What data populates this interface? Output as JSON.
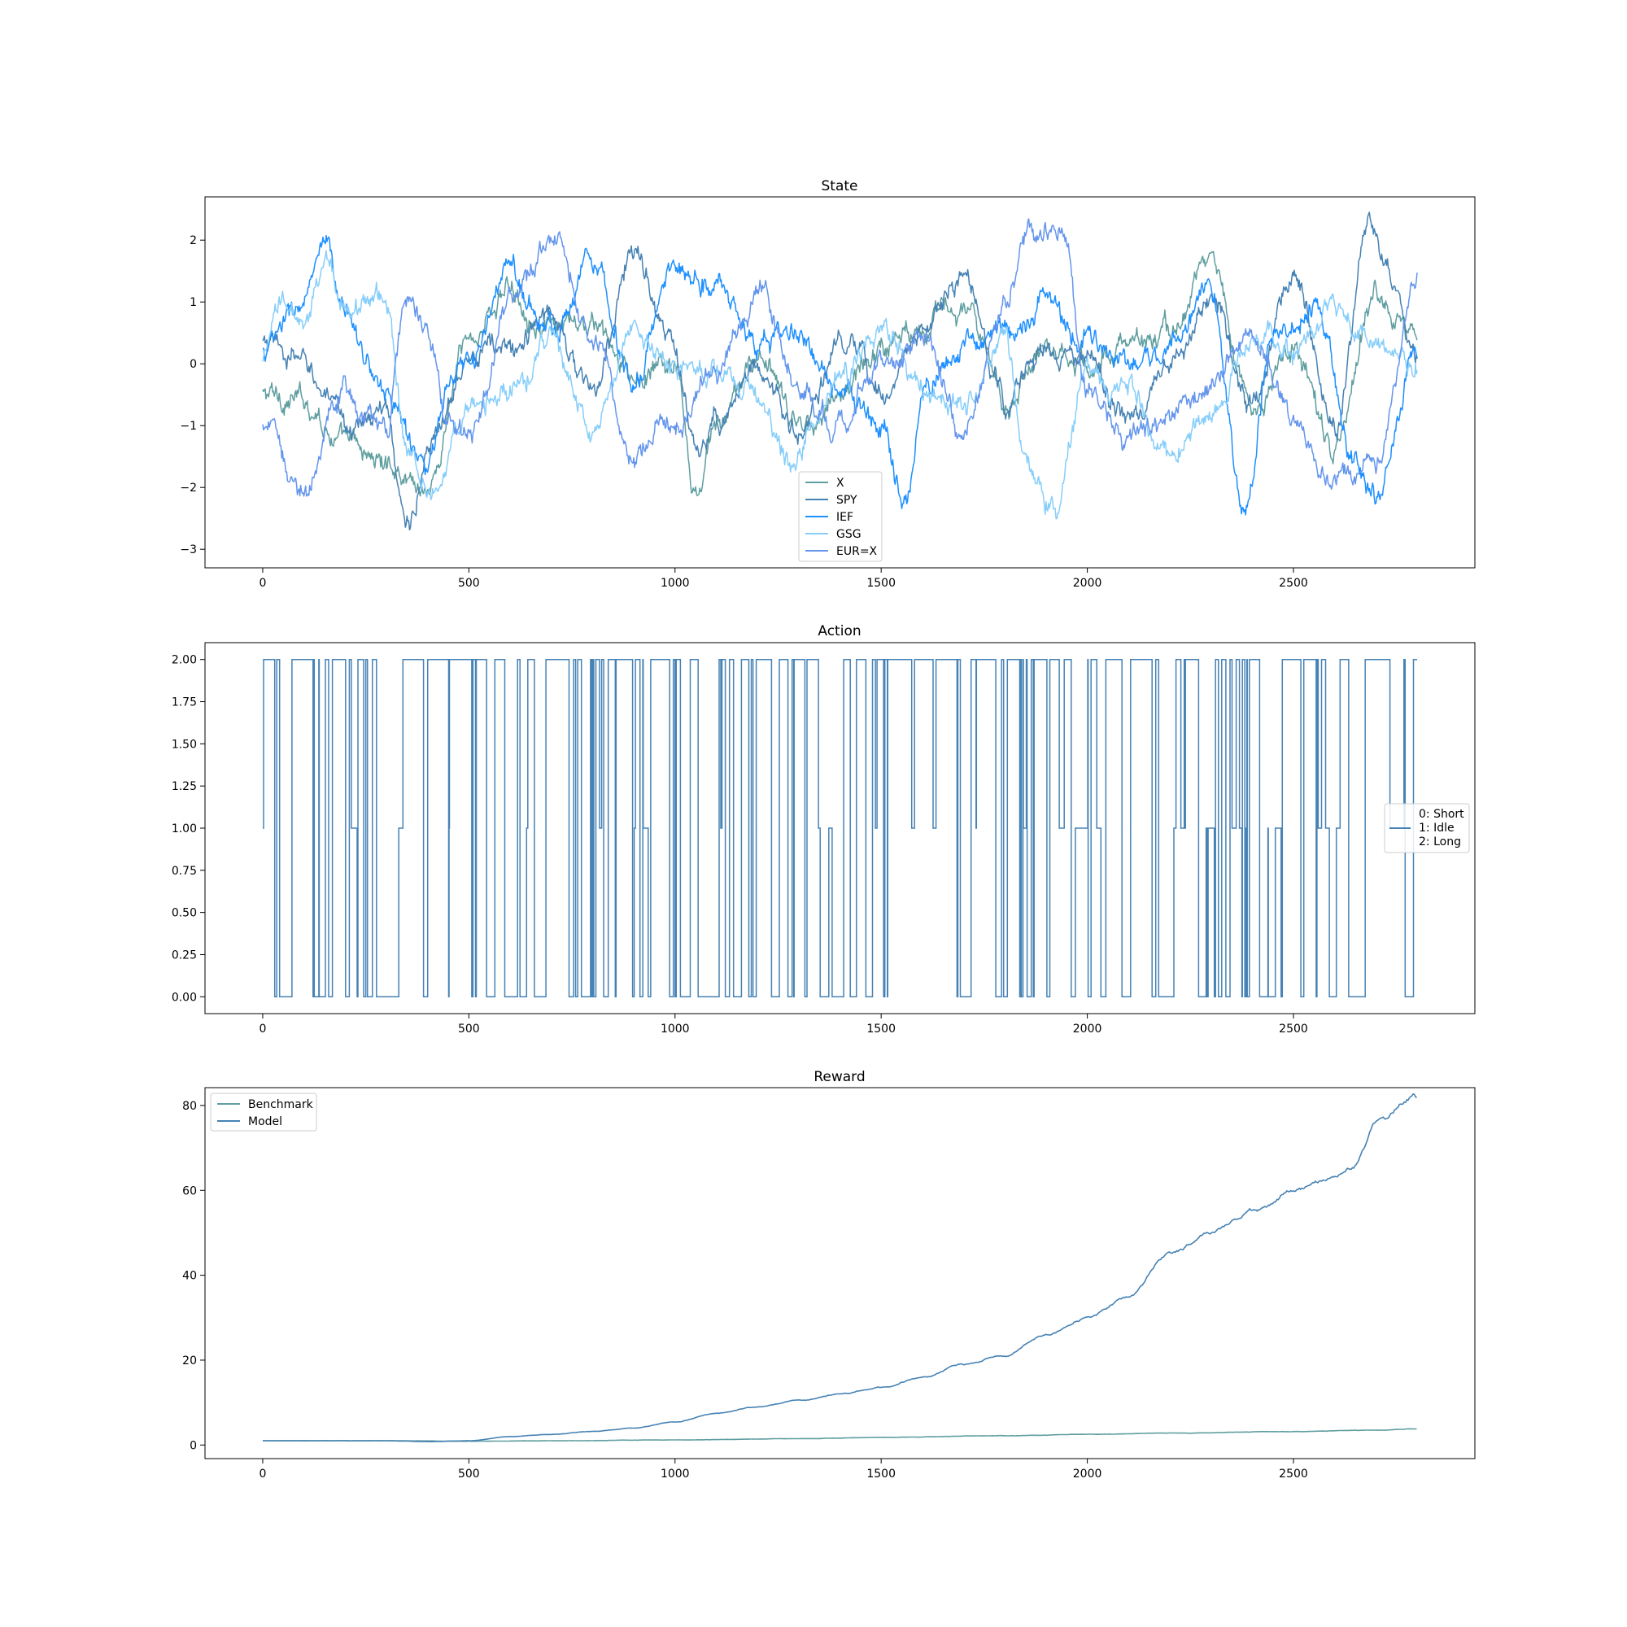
{
  "chart_data": [
    {
      "type": "line",
      "title": "State",
      "xlim": [
        -140,
        2940
      ],
      "ylim": [
        -3.3,
        2.7
      ],
      "xticks": [
        0,
        500,
        1000,
        1500,
        2000,
        2500
      ],
      "yticks": [
        -3,
        -2,
        -1,
        0,
        1,
        2
      ],
      "ytick_labels": [
        "−3",
        "−2",
        "−1",
        "0",
        "1",
        "2"
      ],
      "legend_position": "lower center",
      "x_range": [
        0,
        2800
      ],
      "series": [
        {
          "name": "X",
          "color": "#5f9ea0",
          "knots": [
            [
              0,
              -0.5
            ],
            [
              100,
              -0.6
            ],
            [
              200,
              -1.3
            ],
            [
              300,
              -1.6
            ],
            [
              400,
              -2.0
            ],
            [
              500,
              0.4
            ],
            [
              600,
              1.2
            ],
            [
              700,
              0.5
            ],
            [
              800,
              0.6
            ],
            [
              900,
              -0.3
            ],
            [
              1000,
              0.0
            ],
            [
              1050,
              -2.2
            ],
            [
              1100,
              -1.0
            ],
            [
              1200,
              0.1
            ],
            [
              1300,
              -1.0
            ],
            [
              1400,
              -0.5
            ],
            [
              1500,
              0.3
            ],
            [
              1600,
              0.7
            ],
            [
              1700,
              0.9
            ],
            [
              1800,
              -0.6
            ],
            [
              1900,
              0.4
            ],
            [
              2000,
              0.0
            ],
            [
              2100,
              0.3
            ],
            [
              2200,
              0.5
            ],
            [
              2300,
              1.7
            ],
            [
              2400,
              -0.8
            ],
            [
              2500,
              0.3
            ],
            [
              2600,
              -1.5
            ],
            [
              2700,
              1.2
            ],
            [
              2800,
              0.5
            ]
          ]
        },
        {
          "name": "SPY",
          "color": "#4682b4",
          "knots": [
            [
              0,
              0.3
            ],
            [
              100,
              0.0
            ],
            [
              200,
              -1.0
            ],
            [
              300,
              -0.8
            ],
            [
              350,
              -2.6
            ],
            [
              400,
              -1.5
            ],
            [
              500,
              0.3
            ],
            [
              600,
              0.2
            ],
            [
              700,
              0.8
            ],
            [
              800,
              -0.5
            ],
            [
              900,
              1.8
            ],
            [
              1000,
              0.2
            ],
            [
              1050,
              -1.5
            ],
            [
              1100,
              -0.9
            ],
            [
              1200,
              0.0
            ],
            [
              1300,
              -1.2
            ],
            [
              1400,
              0.3
            ],
            [
              1500,
              -0.4
            ],
            [
              1600,
              0.5
            ],
            [
              1700,
              1.4
            ],
            [
              1800,
              -0.6
            ],
            [
              1900,
              0.2
            ],
            [
              2000,
              0.0
            ],
            [
              2100,
              -0.9
            ],
            [
              2200,
              -0.2
            ],
            [
              2300,
              1.0
            ],
            [
              2400,
              -0.7
            ],
            [
              2500,
              1.6
            ],
            [
              2600,
              -1.0
            ],
            [
              2680,
              2.3
            ],
            [
              2800,
              0.2
            ]
          ]
        },
        {
          "name": "IEF",
          "color": "#1e90ff",
          "knots": [
            [
              0,
              0.2
            ],
            [
              100,
              1.0
            ],
            [
              150,
              1.8
            ],
            [
              200,
              0.8
            ],
            [
              300,
              -0.5
            ],
            [
              400,
              -1.7
            ],
            [
              450,
              -0.5
            ],
            [
              500,
              0.0
            ],
            [
              600,
              1.5
            ],
            [
              700,
              0.5
            ],
            [
              800,
              1.8
            ],
            [
              900,
              -0.3
            ],
            [
              1000,
              1.6
            ],
            [
              1100,
              1.3
            ],
            [
              1200,
              0.3
            ],
            [
              1300,
              0.5
            ],
            [
              1400,
              -0.6
            ],
            [
              1500,
              -1.0
            ],
            [
              1560,
              -2.2
            ],
            [
              1600,
              -0.5
            ],
            [
              1700,
              0.3
            ],
            [
              1800,
              0.5
            ],
            [
              1900,
              1.0
            ],
            [
              2000,
              0.3
            ],
            [
              2100,
              0.0
            ],
            [
              2200,
              0.3
            ],
            [
              2300,
              1.2
            ],
            [
              2380,
              -2.5
            ],
            [
              2450,
              0.5
            ],
            [
              2550,
              0.8
            ],
            [
              2650,
              -1.5
            ],
            [
              2700,
              -2.2
            ],
            [
              2800,
              0.3
            ]
          ]
        },
        {
          "name": "GSG",
          "color": "#87cefa",
          "knots": [
            [
              0,
              0.0
            ],
            [
              50,
              1.0
            ],
            [
              100,
              0.5
            ],
            [
              150,
              1.6
            ],
            [
              200,
              1.0
            ],
            [
              300,
              1.1
            ],
            [
              350,
              -1.5
            ],
            [
              420,
              -2.0
            ],
            [
              500,
              -0.7
            ],
            [
              600,
              -0.5
            ],
            [
              700,
              0.4
            ],
            [
              800,
              -1.2
            ],
            [
              900,
              0.5
            ],
            [
              1000,
              0.0
            ],
            [
              1100,
              -0.2
            ],
            [
              1200,
              -0.5
            ],
            [
              1280,
              -1.6
            ],
            [
              1400,
              -0.2
            ],
            [
              1500,
              0.5
            ],
            [
              1600,
              -0.3
            ],
            [
              1700,
              -0.6
            ],
            [
              1800,
              0.4
            ],
            [
              1850,
              -1.5
            ],
            [
              1920,
              -2.4
            ],
            [
              2000,
              -0.2
            ],
            [
              2100,
              -0.5
            ],
            [
              2200,
              -1.5
            ],
            [
              2300,
              -0.8
            ],
            [
              2400,
              0.5
            ],
            [
              2500,
              0.2
            ],
            [
              2600,
              1.0
            ],
            [
              2700,
              0.3
            ],
            [
              2800,
              0.0
            ]
          ]
        },
        {
          "name": "EUR=X",
          "color": "#6495ed",
          "knots": [
            [
              0,
              -1.0
            ],
            [
              100,
              -2.0
            ],
            [
              200,
              -0.5
            ],
            [
              300,
              -1.2
            ],
            [
              350,
              1.2
            ],
            [
              400,
              0.6
            ],
            [
              450,
              -1.0
            ],
            [
              500,
              -1.2
            ],
            [
              600,
              1.0
            ],
            [
              700,
              2.0
            ],
            [
              800,
              0.5
            ],
            [
              900,
              -1.5
            ],
            [
              1000,
              -0.8
            ],
            [
              1100,
              -0.2
            ],
            [
              1200,
              1.2
            ],
            [
              1300,
              -0.3
            ],
            [
              1400,
              -1.0
            ],
            [
              1500,
              0.0
            ],
            [
              1600,
              0.5
            ],
            [
              1700,
              -1.0
            ],
            [
              1800,
              1.0
            ],
            [
              1850,
              2.2
            ],
            [
              1950,
              2.0
            ],
            [
              2000,
              -0.5
            ],
            [
              2100,
              -1.2
            ],
            [
              2200,
              -0.8
            ],
            [
              2300,
              -0.3
            ],
            [
              2400,
              0.6
            ],
            [
              2500,
              -1.0
            ],
            [
              2600,
              -2.0
            ],
            [
              2700,
              -1.5
            ],
            [
              2800,
              1.3
            ]
          ]
        }
      ]
    },
    {
      "type": "line",
      "title": "Action",
      "xlim": [
        -140,
        2940
      ],
      "ylim": [
        -0.1,
        2.1
      ],
      "xticks": [
        0,
        500,
        1000,
        1500,
        2000,
        2500
      ],
      "yticks": [
        0,
        0.25,
        0.5,
        0.75,
        1.0,
        1.25,
        1.5,
        1.75,
        2.0
      ],
      "ytick_labels": [
        "0.00",
        "0.25",
        "0.50",
        "0.75",
        "1.00",
        "1.25",
        "1.50",
        "1.75",
        "2.00"
      ],
      "legend_position": "center right",
      "x_range": [
        0,
        2800
      ],
      "values_allowed": [
        0,
        1,
        2
      ],
      "series": [
        {
          "name": "0: Short\n1: Idle\n2: Long",
          "color": "#4682b4"
        }
      ],
      "legend_lines": [
        "0: Short",
        "1: Idle",
        "2: Long"
      ]
    },
    {
      "type": "line",
      "title": "Reward",
      "xlim": [
        -140,
        2940
      ],
      "ylim": [
        -3.2,
        84.2
      ],
      "xticks": [
        0,
        500,
        1000,
        1500,
        2000,
        2500
      ],
      "yticks": [
        0,
        20,
        40,
        60,
        80
      ],
      "ytick_labels": [
        "0",
        "20",
        "40",
        "60",
        "80"
      ],
      "legend_position": "upper left",
      "x_range": [
        0,
        2800
      ],
      "series": [
        {
          "name": "Benchmark",
          "color": "#5f9ea0",
          "knots": [
            [
              0,
              1.0
            ],
            [
              300,
              1.0
            ],
            [
              500,
              0.9
            ],
            [
              700,
              1.0
            ],
            [
              1000,
              1.2
            ],
            [
              1300,
              1.5
            ],
            [
              1500,
              1.8
            ],
            [
              1800,
              2.2
            ],
            [
              2000,
              2.5
            ],
            [
              2200,
              2.8
            ],
            [
              2500,
              3.2
            ],
            [
              2700,
              3.5
            ],
            [
              2800,
              3.8
            ]
          ]
        },
        {
          "name": "Model",
          "color": "#4682b4",
          "knots": [
            [
              0,
              1.0
            ],
            [
              300,
              1.0
            ],
            [
              400,
              0.8
            ],
            [
              500,
              1.0
            ],
            [
              600,
              2.0
            ],
            [
              700,
              2.5
            ],
            [
              800,
              3.2
            ],
            [
              900,
              4.0
            ],
            [
              1000,
              5.5
            ],
            [
              1100,
              7.5
            ],
            [
              1200,
              9.0
            ],
            [
              1300,
              10.5
            ],
            [
              1400,
              12.0
            ],
            [
              1500,
              13.5
            ],
            [
              1600,
              16.0
            ],
            [
              1700,
              19.0
            ],
            [
              1800,
              21.0
            ],
            [
              1900,
              26.0
            ],
            [
              2000,
              30.0
            ],
            [
              2100,
              35.0
            ],
            [
              2200,
              45.0
            ],
            [
              2300,
              50.0
            ],
            [
              2400,
              55.0
            ],
            [
              2500,
              60.0
            ],
            [
              2600,
              63.0
            ],
            [
              2650,
              66.0
            ],
            [
              2700,
              76.0
            ],
            [
              2800,
              82.0
            ]
          ]
        }
      ]
    }
  ]
}
